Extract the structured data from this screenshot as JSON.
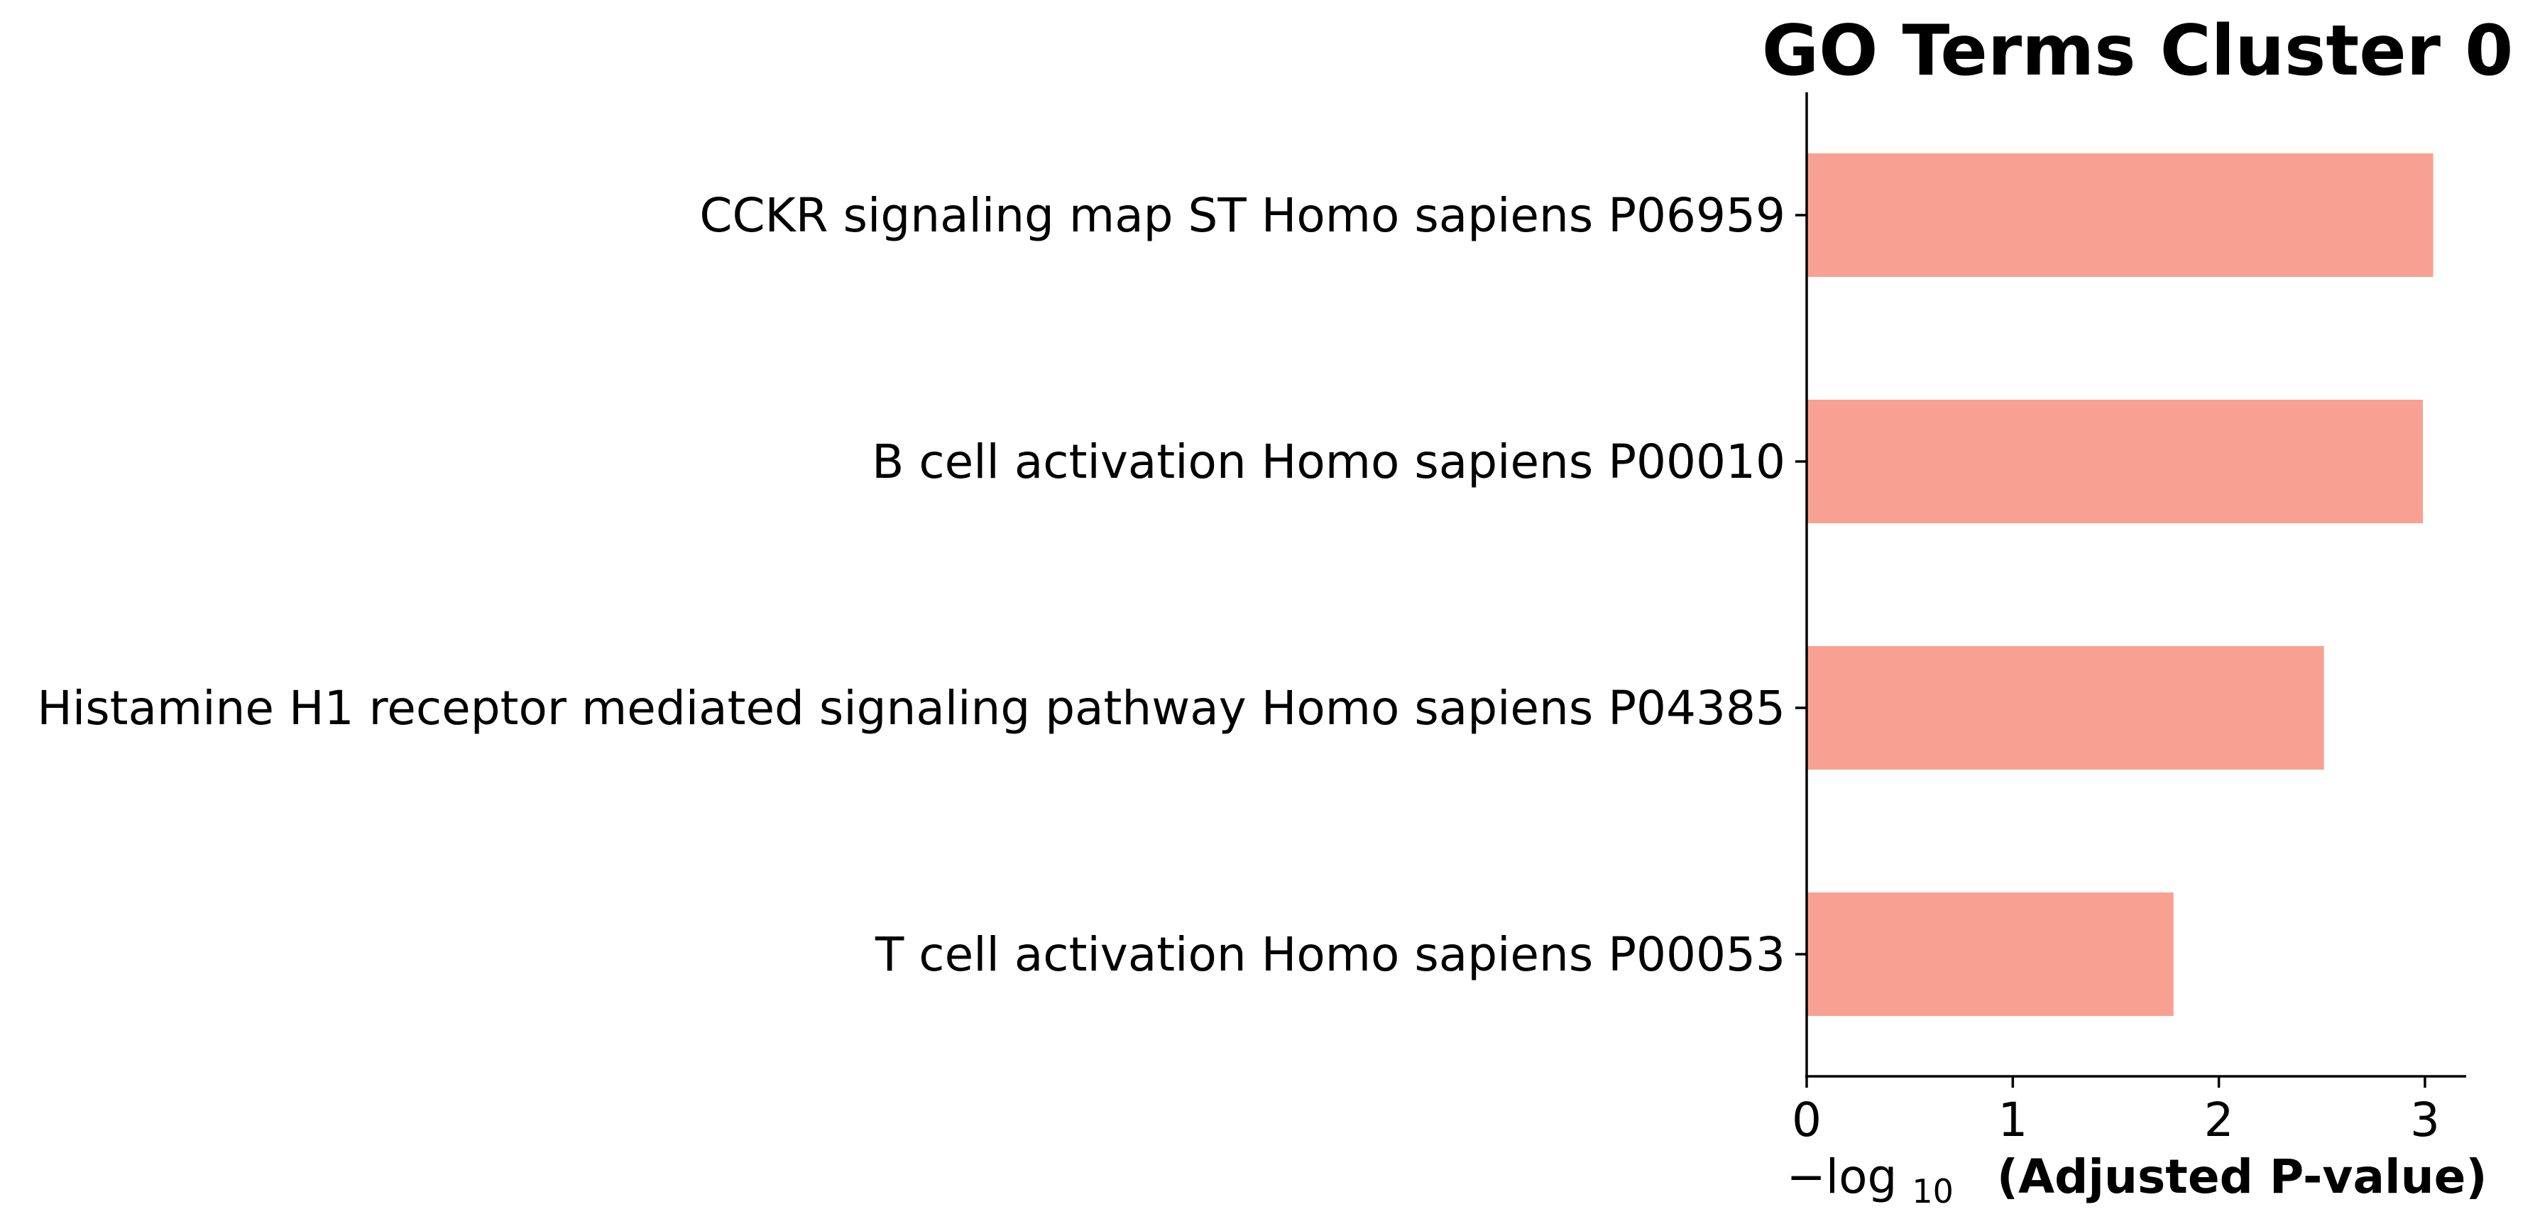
{
  "chart_data": {
    "type": "bar",
    "orientation": "horizontal",
    "title": "GO Terms Cluster 0",
    "xlabel_prefix": "−log",
    "xlabel_subscript": "10",
    "xlabel_main": "(Adjusted P-value)",
    "categories": [
      "CCKR signaling map ST Homo sapiens P06959",
      "B cell activation Homo sapiens P00010",
      "Histamine H1 receptor mediated signaling pathway Homo sapiens P04385",
      "T cell activation Homo sapiens P00053"
    ],
    "values": [
      3.04,
      2.99,
      2.51,
      1.78
    ],
    "xlim": [
      0,
      3.2
    ],
    "xticks": [
      "0",
      "1",
      "2",
      "3"
    ],
    "grid": false,
    "legend": "none",
    "bar_color": "#f8a193"
  }
}
